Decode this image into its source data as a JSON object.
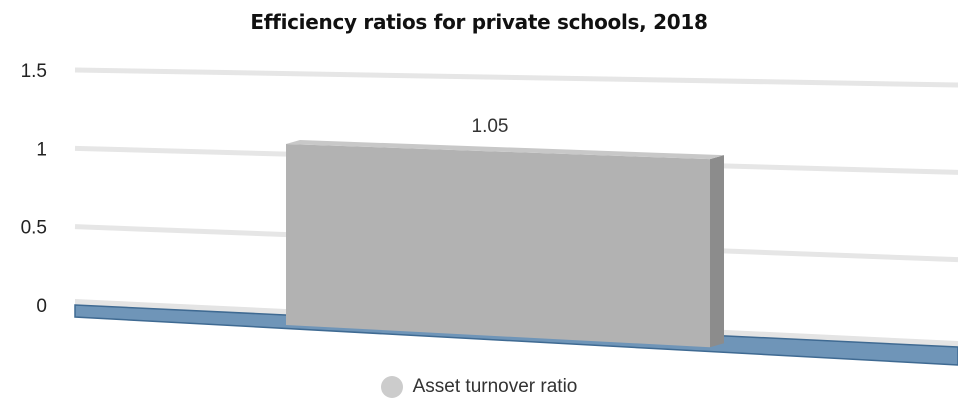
{
  "chart_data": {
    "type": "bar",
    "title": "Efficiency ratios for private schools, 2018",
    "xlabel": "",
    "ylabel": "",
    "categories": [
      ""
    ],
    "series": [
      {
        "name": "Asset turnover ratio",
        "values": [
          1.05
        ],
        "color": "#b2b2b2",
        "data_labels": [
          "1.05"
        ]
      }
    ],
    "ylim": [
      0,
      1.5
    ],
    "yticks": [
      0,
      0.5,
      1,
      1.5
    ],
    "ytick_labels": [
      "0",
      "0.5",
      "1",
      "1.5"
    ],
    "grid": true,
    "legend": "bottom",
    "floor_color": "#6f95b8",
    "gridline_color": "#e6e6e6",
    "three_d": true
  }
}
